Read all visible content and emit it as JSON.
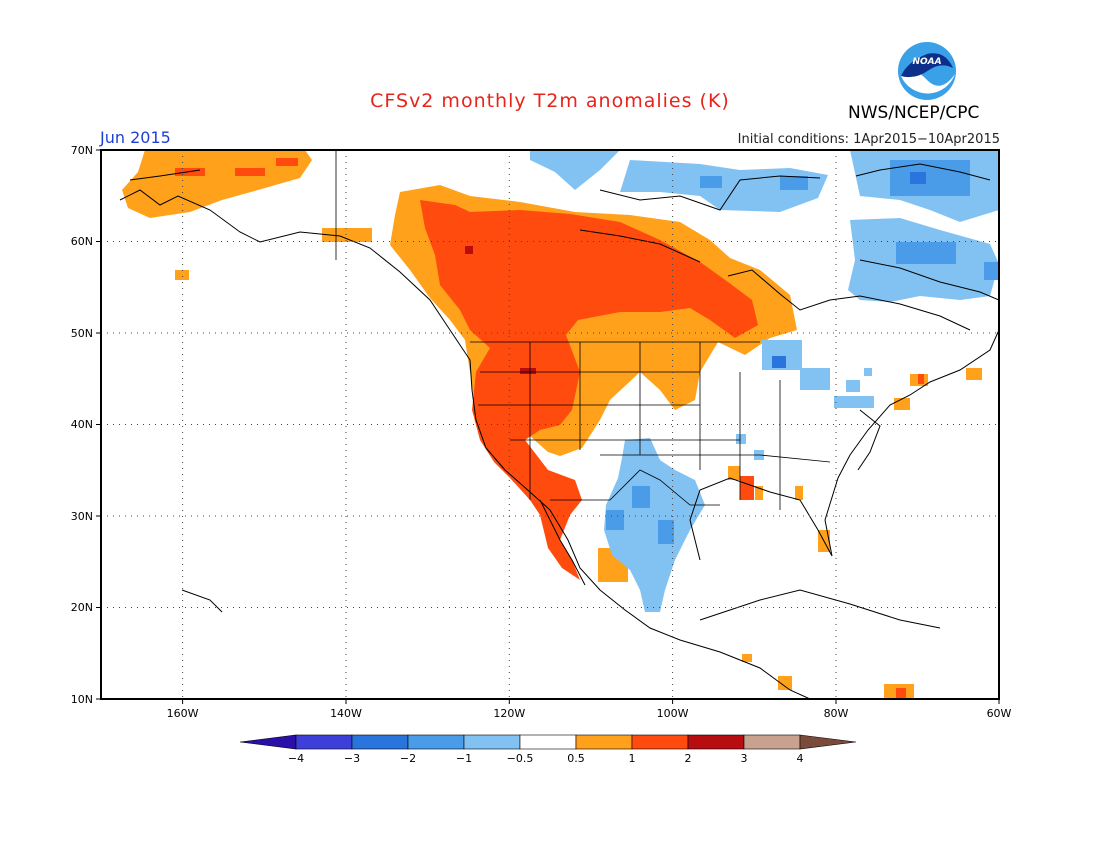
{
  "title": "CFSv2 monthly T2m anomalies (K)",
  "period": "Jun 2015",
  "initial_conditions": "Initial conditions: 1Apr2015−10Apr2015",
  "agency": "NWS/NCEP/CPC",
  "logo_text": "NOAA",
  "map": {
    "lon_range": [
      -170,
      -60
    ],
    "lat_range": [
      10,
      70
    ],
    "lat_ticks": [
      "10N",
      "20N",
      "30N",
      "40N",
      "50N",
      "60N",
      "70N"
    ],
    "lon_ticks": [
      "160W",
      "140W",
      "120W",
      "100W",
      "80W",
      "60W"
    ],
    "grid": "dotted"
  },
  "legend": {
    "labels": [
      "−4",
      "−3",
      "−2",
      "−1",
      "−0.5",
      "0.5",
      "1",
      "2",
      "3",
      "4"
    ],
    "colors": [
      "#2a0fa8",
      "#3d3fd8",
      "#2a74de",
      "#4a9be8",
      "#82c2f2",
      "#ffffff",
      "#ffa11a",
      "#ff4b0e",
      "#b80d10",
      "#c9a28f",
      "#7a4a3a"
    ]
  }
}
